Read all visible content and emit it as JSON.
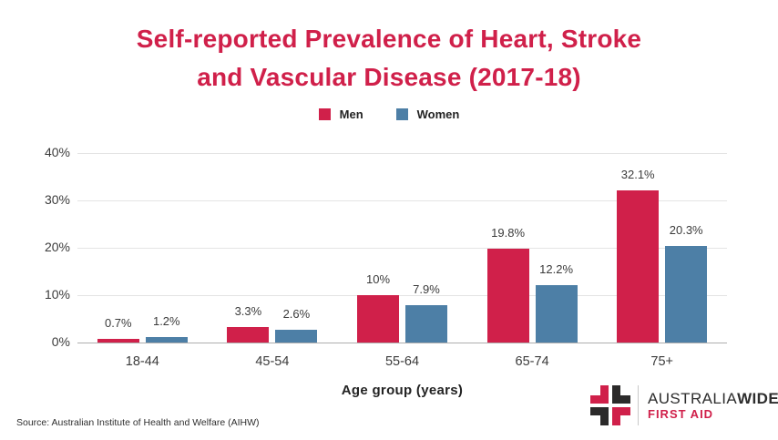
{
  "header": {
    "title_lines": [
      "Self-reported Prevalence of Heart, Stroke",
      "and Vascular Disease (2017-18)"
    ]
  },
  "chart_data": {
    "type": "bar",
    "title": "Self-reported Prevalence of Heart, Stroke and Vascular Disease (2017-18)",
    "categories": [
      "18-44",
      "45-54",
      "55-64",
      "65-74",
      "75+"
    ],
    "series": [
      {
        "name": "Men",
        "color": "#d0204a",
        "values": [
          0.7,
          3.3,
          10,
          19.8,
          32.1
        ],
        "labels": [
          "0.7%",
          "3.3%",
          "10%",
          "19.8%",
          "32.1%"
        ]
      },
      {
        "name": "Women",
        "color": "#4d7fa6",
        "values": [
          1.2,
          2.6,
          7.9,
          12.2,
          20.3
        ],
        "labels": [
          "1.2%",
          "2.6%",
          "7.9%",
          "12.2%",
          "20.3%"
        ]
      }
    ],
    "xlabel": "Age group (years)",
    "ylabel": "",
    "ylim": [
      0,
      40
    ],
    "yticks": [
      0,
      10,
      20,
      30,
      40
    ],
    "ytick_labels": [
      "0%",
      "10%",
      "20%",
      "30%",
      "40%"
    ],
    "grid": true,
    "legend_position": "top"
  },
  "footer": {
    "source": "Source: Australian Institute of Health and Welfare (AIHW)",
    "logo": {
      "name_regular": "AUSTRALIA",
      "name_bold": "WIDE",
      "subtitle": "FIRST AID"
    }
  },
  "colors": {
    "title_red": "#d0204a",
    "men_red": "#d0204a",
    "women_blue": "#4d7fa6",
    "gridline": "#e4e4e4",
    "axis_line": "#aeaeae",
    "logo_black": "#2b2a2a"
  }
}
